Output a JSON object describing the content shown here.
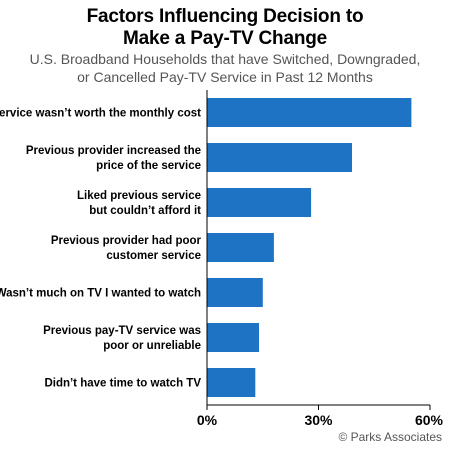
{
  "colors": {
    "bar": "#1f73c4",
    "axis": "#000000",
    "background": "#ffffff"
  },
  "header": {
    "title_line1": "Factors Influencing Decision to",
    "title_line2": "Make a Pay-TV Change",
    "subtitle_line1": "U.S. Broadband Households that have Switched, Downgraded,",
    "subtitle_line2": "or Cancelled Pay-TV Service in Past 12 Months"
  },
  "footer": {
    "source": "© Parks Associates"
  },
  "chart_data": {
    "type": "bar",
    "orientation": "horizontal",
    "title": "Factors Influencing Decision to Make a Pay-TV Change",
    "subtitle": "U.S. Broadband Households that have Switched, Downgraded, or Cancelled Pay-TV Service in Past 12 Months",
    "categories": [
      [
        "Service wasn’t worth the monthly cost"
      ],
      [
        "Previous provider increased the",
        "price of the service"
      ],
      [
        "Liked previous service",
        "but couldn’t afford it"
      ],
      [
        "Previous provider had poor",
        "customer service"
      ],
      [
        "Wasn’t much on TV I wanted to watch"
      ],
      [
        "Previous pay-TV service was",
        "poor or unreliable"
      ],
      [
        "Didn’t have time to watch TV"
      ]
    ],
    "values": [
      55,
      39,
      28,
      18,
      15,
      14,
      13
    ],
    "value_unit": "%",
    "xlim": [
      0,
      60
    ],
    "xticks": [
      0,
      30,
      60
    ],
    "xtick_labels": [
      "0%",
      "30%",
      "60%"
    ],
    "grid": false,
    "legend": "none"
  }
}
